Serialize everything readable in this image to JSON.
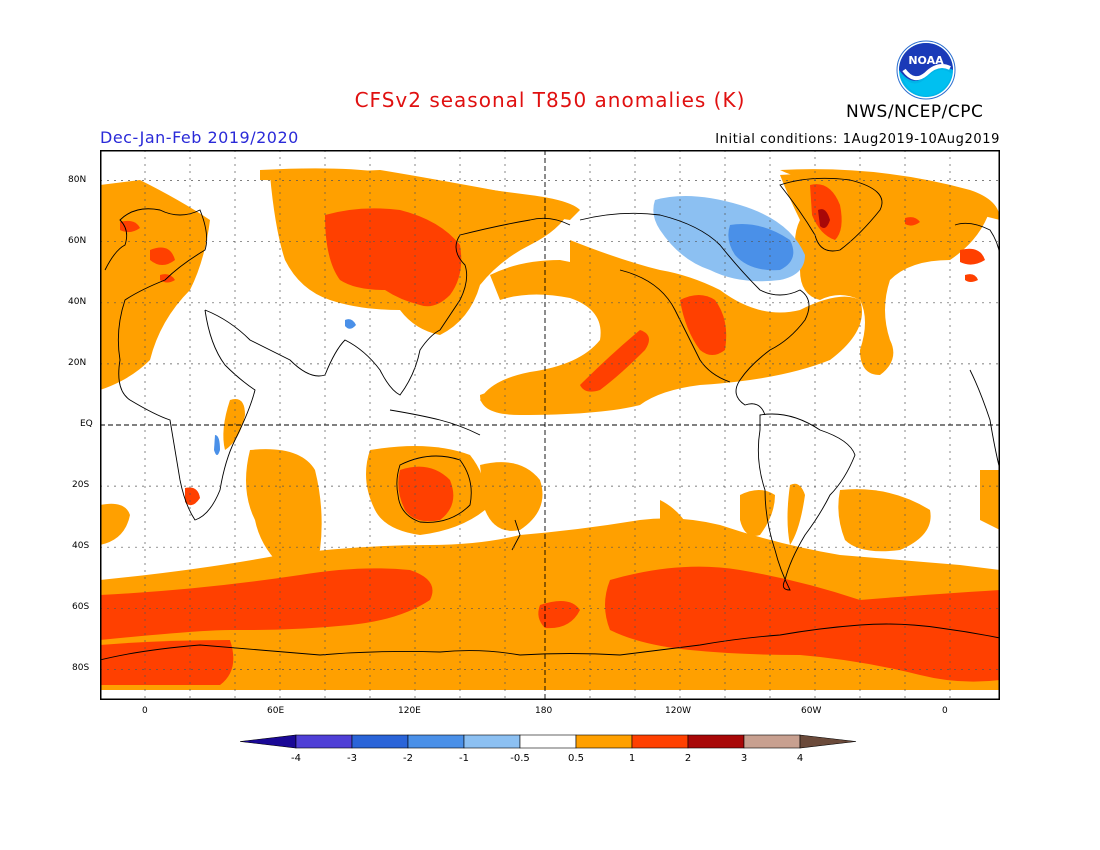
{
  "header": {
    "title": "CFSv2 seasonal T850 anomalies (K)",
    "agency": "NWS/NCEP/CPC",
    "season": "Dec-Jan-Feb 2019/2020",
    "initial_conditions": "Initial conditions: 1Aug2019-10Aug2019",
    "logo_text": "NOAA"
  },
  "map": {
    "lat_labels": [
      "80N",
      "60N",
      "40N",
      "20N",
      "EQ",
      "20S",
      "40S",
      "60S",
      "80S"
    ],
    "lon_labels": [
      "0",
      "60E",
      "120E",
      "180",
      "120W",
      "60W",
      "0"
    ]
  },
  "colorbar": {
    "labels": [
      "-4",
      "-3",
      "-2",
      "-1",
      "-0.5",
      "0.5",
      "1",
      "2",
      "3",
      "4"
    ],
    "colors": [
      "#1a0896",
      "#4f3fd6",
      "#2a64d8",
      "#4a90e8",
      "#8cc0f2",
      "#ffffff",
      "#ffa000",
      "#ff4000",
      "#a80808",
      "#c8a090",
      "#6b4a3a"
    ]
  },
  "colors": {
    "title": "#e01010",
    "season": "#2a2ad8",
    "anom_05_1": "#ffa000",
    "anom_1_2": "#ff4000",
    "anom_2_3": "#a80808",
    "neg_05_1": "#8cc0f2",
    "neg_1_2": "#4a90e8"
  }
}
